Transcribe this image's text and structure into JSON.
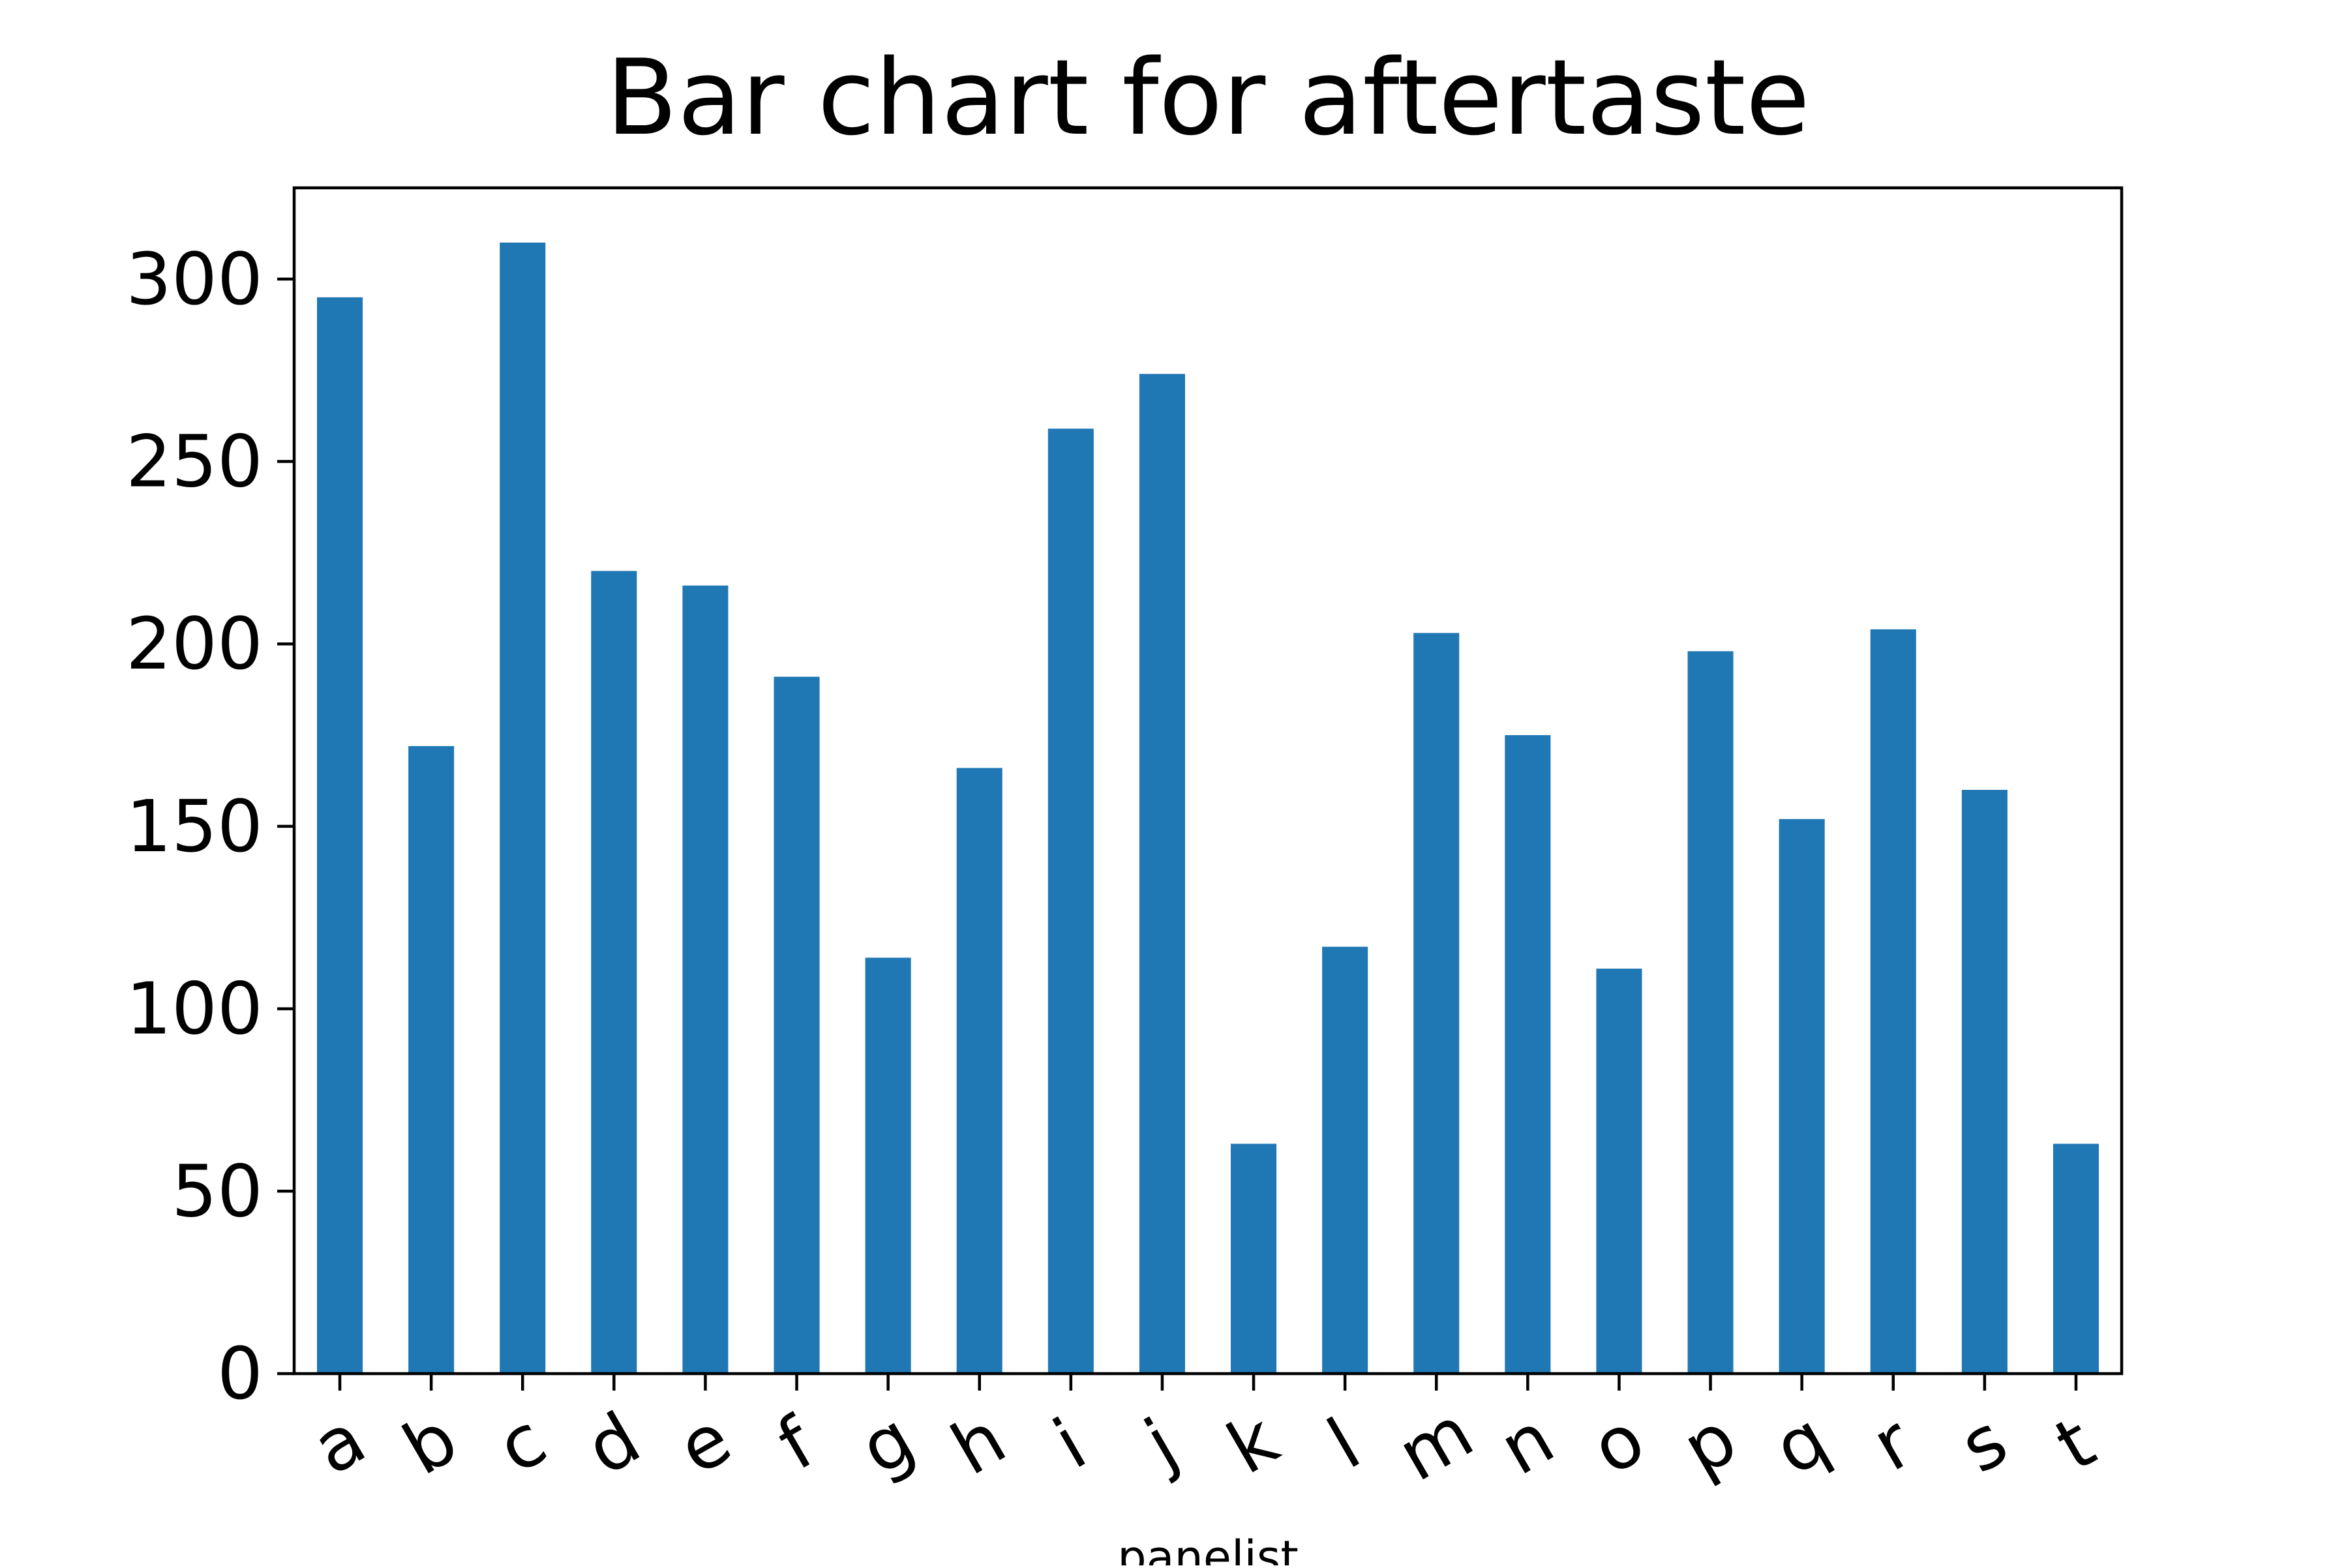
{
  "chart_data": {
    "type": "bar",
    "title": "Bar chart for aftertaste",
    "xlabel": "panelist",
    "ylabel": "",
    "categories": [
      "a",
      "b",
      "c",
      "d",
      "e",
      "f",
      "g",
      "h",
      "i",
      "j",
      "k",
      "l",
      "m",
      "n",
      "o",
      "p",
      "q",
      "r",
      "s",
      "t"
    ],
    "values": [
      295,
      172,
      310,
      220,
      216,
      191,
      114,
      166,
      259,
      274,
      63,
      117,
      203,
      175,
      111,
      198,
      152,
      204,
      160,
      63
    ],
    "ylim": [
      0,
      325
    ],
    "yticks": [
      0,
      50,
      100,
      150,
      200,
      250,
      300
    ],
    "ytick_labels": [
      "0",
      "50",
      "100",
      "150",
      "200",
      "250",
      "300"
    ],
    "bar_color": "#1f77b4",
    "grid": false,
    "legend": "none"
  }
}
